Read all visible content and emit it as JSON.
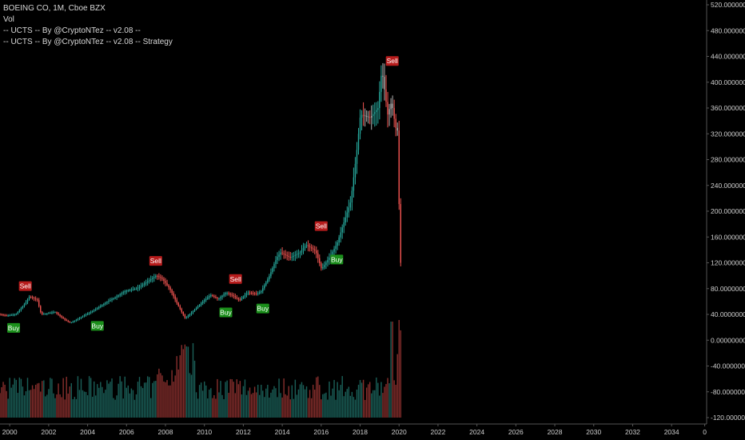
{
  "legend": {
    "symbol_line": "BOEING CO, 1M, Cboe BZX",
    "vol_line": "Vol",
    "indicator_line": "-- UCTS -- By @CryptoNTez -- v2.08 --",
    "strategy_line": "-- UCTS -- By @CryptoNTez -- v2.08 -- Strategy"
  },
  "colors": {
    "background": "#000000",
    "up": "#26a69a",
    "down": "#ef5350",
    "neutral": "#b0b0b0",
    "buy_bg": "#1b8f1b",
    "sell_bg": "#b71c1c",
    "axis_text": "#cfcfcf",
    "axis_line": "#555555"
  },
  "chart_data": {
    "type": "candlestick",
    "title": "BOEING CO, 1M, Cboe BZX",
    "xlim": [
      1999.5,
      2035.8
    ],
    "ylim": [
      -120,
      520
    ],
    "y_ticks": [
      "520.00000000",
      "480.00000000",
      "440.00000000",
      "400.00000000",
      "360.00000000",
      "320.00000000",
      "280.00000000",
      "240.00000000",
      "200.00000000",
      "160.00000000",
      "120.00000000",
      "80.00000000",
      "40.00000000",
      "0.00000000",
      "-40.00000000",
      "-80.00000000",
      "-120.00000000"
    ],
    "y_tick_values": [
      520,
      480,
      440,
      400,
      360,
      320,
      280,
      240,
      200,
      160,
      120,
      80,
      40,
      0,
      -40,
      -80,
      -120
    ],
    "x_ticks": [
      "2000",
      "2002",
      "2004",
      "2006",
      "2008",
      "2010",
      "2012",
      "2014",
      "2016",
      "2018",
      "2020",
      "2022",
      "2024",
      "2026",
      "2028",
      "2030",
      "2032",
      "2034",
      "0"
    ],
    "x_tick_values": [
      2000,
      2002,
      2004,
      2006,
      2008,
      2010,
      2012,
      2014,
      2016,
      2018,
      2020,
      2022,
      2024,
      2026,
      2028,
      2030,
      2032,
      2034,
      2035.7
    ],
    "price_anchors": [
      [
        1999.5,
        41
      ],
      [
        1999.9,
        38
      ],
      [
        2000.4,
        40
      ],
      [
        2000.9,
        58
      ],
      [
        2001.1,
        68
      ],
      [
        2001.5,
        62
      ],
      [
        2001.7,
        40
      ],
      [
        2002.1,
        42
      ],
      [
        2002.4,
        44
      ],
      [
        2002.9,
        32
      ],
      [
        2003.2,
        27
      ],
      [
        2003.6,
        33
      ],
      [
        2004.0,
        40
      ],
      [
        2004.5,
        48
      ],
      [
        2005.0,
        58
      ],
      [
        2005.6,
        68
      ],
      [
        2006.0,
        76
      ],
      [
        2006.6,
        80
      ],
      [
        2007.0,
        88
      ],
      [
        2007.6,
        100
      ],
      [
        2007.9,
        96
      ],
      [
        2008.3,
        80
      ],
      [
        2008.8,
        50
      ],
      [
        2009.1,
        34
      ],
      [
        2009.5,
        45
      ],
      [
        2010.0,
        60
      ],
      [
        2010.4,
        70
      ],
      [
        2010.8,
        64
      ],
      [
        2011.2,
        74
      ],
      [
        2011.6,
        68
      ],
      [
        2011.9,
        62
      ],
      [
        2012.3,
        74
      ],
      [
        2012.8,
        72
      ],
      [
        2013.0,
        76
      ],
      [
        2013.4,
        98
      ],
      [
        2013.8,
        128
      ],
      [
        2014.0,
        136
      ],
      [
        2014.5,
        128
      ],
      [
        2015.0,
        136
      ],
      [
        2015.3,
        148
      ],
      [
        2015.8,
        138
      ],
      [
        2016.1,
        110
      ],
      [
        2016.5,
        128
      ],
      [
        2016.9,
        150
      ],
      [
        2017.2,
        178
      ],
      [
        2017.6,
        215
      ],
      [
        2017.9,
        290
      ],
      [
        2018.1,
        350
      ],
      [
        2018.6,
        345
      ],
      [
        2019.0,
        360
      ],
      [
        2019.2,
        420
      ],
      [
        2019.5,
        350
      ],
      [
        2019.7,
        370
      ],
      [
        2019.9,
        330
      ],
      [
        2020.0,
        325
      ],
      [
        2020.15,
        120
      ]
    ],
    "signals": [
      {
        "type": "Sell",
        "x": 2000.8,
        "y": 69
      },
      {
        "type": "Buy",
        "x": 2000.2,
        "y": 34
      },
      {
        "type": "Buy",
        "x": 2004.5,
        "y": 37
      },
      {
        "type": "Sell",
        "x": 2007.5,
        "y": 108
      },
      {
        "type": "Sell",
        "x": 2011.6,
        "y": 80
      },
      {
        "type": "Buy",
        "x": 2011.1,
        "y": 58
      },
      {
        "type": "Buy",
        "x": 2013.0,
        "y": 64
      },
      {
        "type": "Sell",
        "x": 2016.0,
        "y": 162
      },
      {
        "type": "Buy",
        "x": 2016.8,
        "y": 140
      },
      {
        "type": "Sell",
        "x": 2019.65,
        "y": 418
      }
    ]
  }
}
